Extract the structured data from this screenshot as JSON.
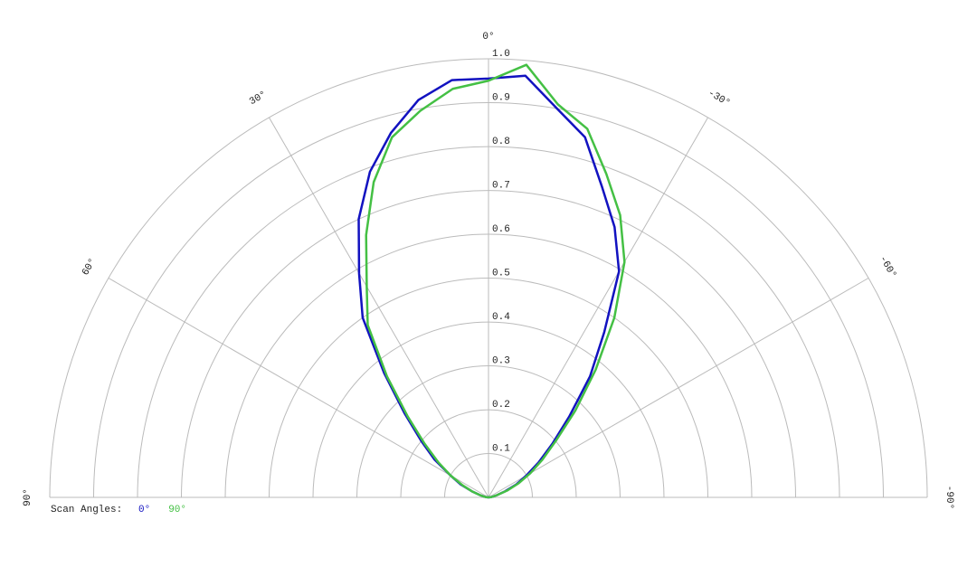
{
  "chart_data": {
    "type": "polar",
    "theta": [
      90,
      85,
      80,
      75,
      70,
      65,
      60,
      55,
      50,
      45,
      40,
      35,
      30,
      25,
      20,
      15,
      10,
      5,
      0,
      -5,
      -10,
      -15,
      -20,
      -25,
      -30,
      -35,
      -40,
      -45,
      -50,
      -55,
      -60,
      -65,
      -70,
      -75,
      -80,
      -85,
      -90
    ],
    "series": [
      {
        "name": "0°",
        "color": "#1212c0",
        "values": [
          0,
          0.005,
          0.01,
          0.02,
          0.04,
          0.07,
          0.1,
          0.15,
          0.2,
          0.27,
          0.37,
          0.5,
          0.59,
          0.7,
          0.79,
          0.86,
          0.92,
          0.955,
          0.955,
          0.965,
          0.9,
          0.85,
          0.755,
          0.68,
          0.595,
          0.46,
          0.36,
          0.26,
          0.19,
          0.14,
          0.1,
          0.07,
          0.04,
          0.02,
          0.01,
          0.005,
          0
        ]
      },
      {
        "name": "90°",
        "color": "#44c044",
        "values": [
          0,
          0.005,
          0.01,
          0.02,
          0.04,
          0.065,
          0.1,
          0.14,
          0.19,
          0.26,
          0.36,
          0.48,
          0.555,
          0.66,
          0.765,
          0.85,
          0.895,
          0.935,
          0.95,
          0.99,
          0.91,
          0.87,
          0.785,
          0.71,
          0.62,
          0.5,
          0.38,
          0.28,
          0.2,
          0.15,
          0.11,
          0.075,
          0.045,
          0.02,
          0.01,
          0.005,
          0
        ]
      }
    ],
    "rlim": [
      0,
      1
    ],
    "rticks": [
      0.1,
      0.2,
      0.3,
      0.4,
      0.5,
      0.6,
      0.7,
      0.8,
      0.9,
      {
        "value": 1,
        "label": "1.0"
      }
    ],
    "thetaticks": [
      {
        "value": 90,
        "label": "90°"
      },
      {
        "value": 60,
        "label": "60°"
      },
      {
        "value": 30,
        "label": "30°"
      },
      {
        "value": 0,
        "label": "0°"
      },
      {
        "value": -30,
        "label": "-30°"
      },
      {
        "value": -60,
        "label": "-60°"
      },
      {
        "value": -90,
        "label": "-90°"
      }
    ],
    "legend_title": "Scan Angles:",
    "grid": true
  }
}
